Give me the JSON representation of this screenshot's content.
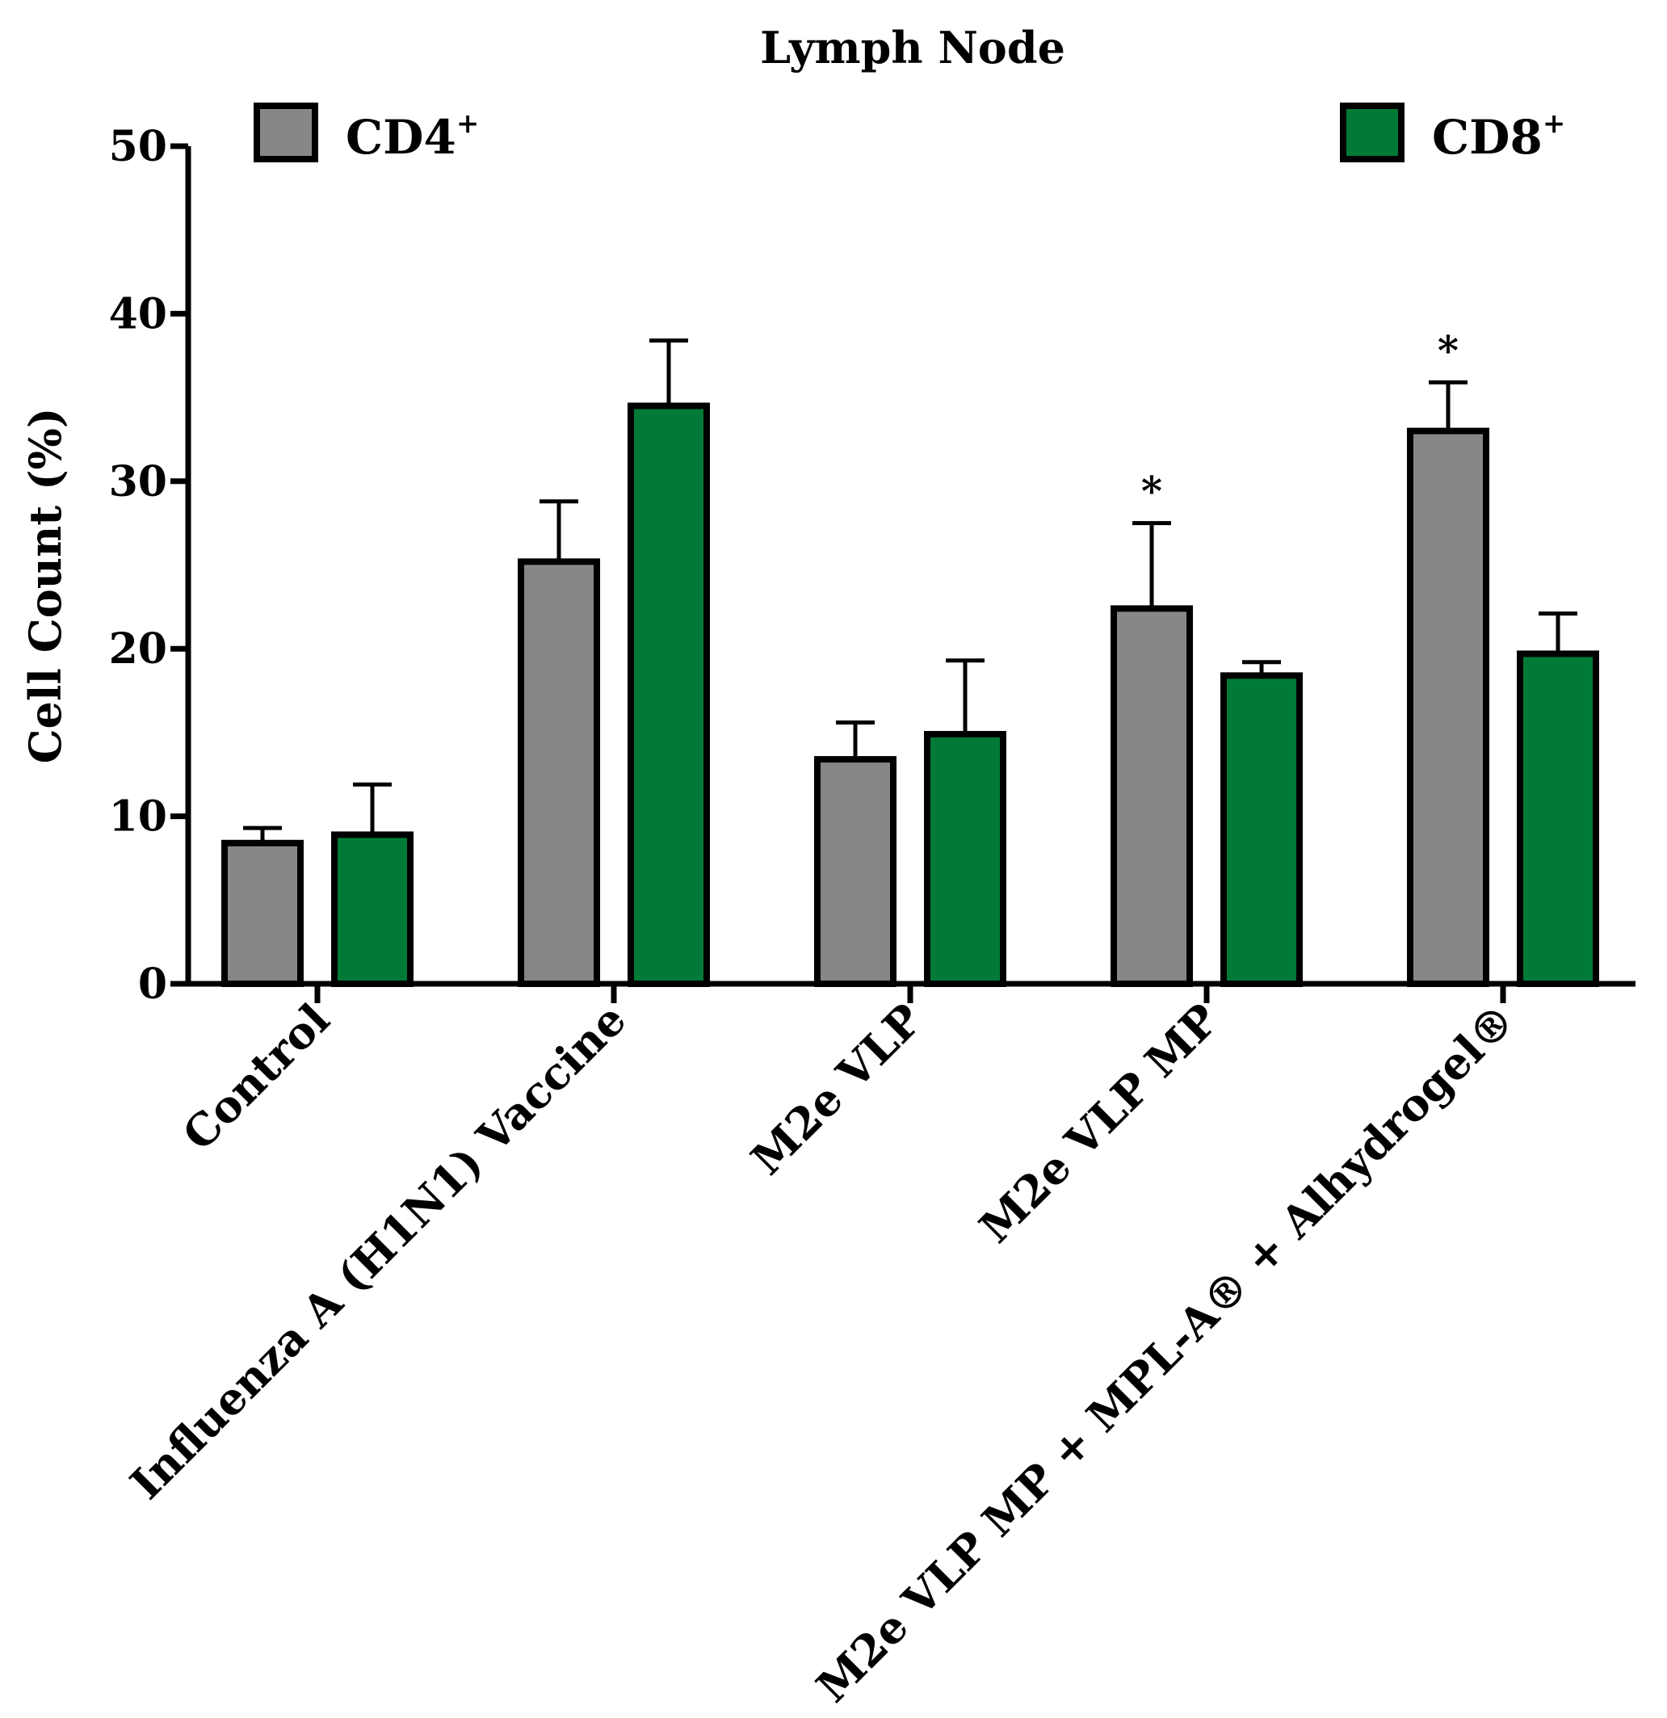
{
  "chart_data": {
    "type": "bar",
    "title": "Lymph Node",
    "ylabel": "Cell Count (%)",
    "xlabel": "",
    "ylim": [
      0,
      50
    ],
    "yticks": [
      0,
      10,
      20,
      30,
      40,
      50
    ],
    "grid": false,
    "legend": {
      "position": "top"
    },
    "categories": [
      "Control",
      "Influenza A (H1N1) Vaccine",
      "M2e VLP",
      "M2e VLP MP",
      "M2e VLP MP + MPL-A® + Alhydrogel®"
    ],
    "series": [
      {
        "name": "CD4",
        "superscript": "+",
        "color": "#878787",
        "values": [
          8.4,
          25.2,
          13.4,
          22.4,
          33.0
        ],
        "errors": [
          0.9,
          3.6,
          2.2,
          5.1,
          2.9
        ],
        "significance": [
          "",
          "",
          "",
          "*",
          "*"
        ]
      },
      {
        "name": "CD8",
        "superscript": "+",
        "color": "#007a36",
        "values": [
          8.9,
          34.5,
          14.9,
          18.4,
          19.7
        ],
        "errors": [
          3.0,
          3.9,
          4.4,
          0.8,
          2.4
        ],
        "significance": [
          "",
          "",
          "",
          "",
          ""
        ]
      }
    ]
  }
}
